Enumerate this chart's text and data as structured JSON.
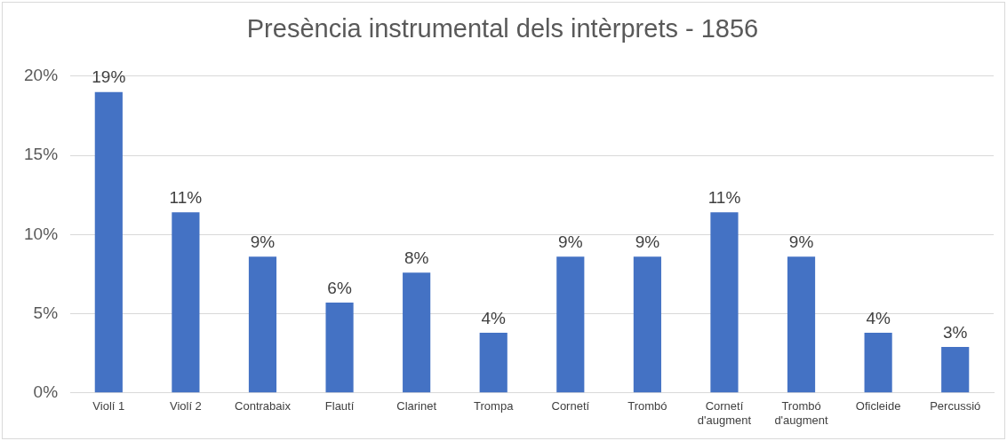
{
  "chart_data": {
    "type": "bar",
    "title": "Presència instrumental dels intèrprets - 1856",
    "categories": [
      "Violí 1",
      "Violí 2",
      "Contrabaix",
      "Flautí",
      "Clarinet",
      "Trompa",
      "Cornetí",
      "Trombó",
      "Cornetí d'augment",
      "Trombó d'augment",
      "Oficleide",
      "Percussió"
    ],
    "values": [
      19.0,
      11.4,
      8.6,
      5.7,
      7.6,
      3.8,
      8.6,
      8.6,
      11.4,
      8.6,
      3.8,
      2.9
    ],
    "value_labels": [
      "19%",
      "11%",
      "9%",
      "6%",
      "8%",
      "4%",
      "9%",
      "9%",
      "11%",
      "9%",
      "4%",
      "3%"
    ],
    "color": "#4472c4",
    "ylim": [
      0,
      20
    ],
    "yticks": [
      {
        "value": 0,
        "label": "0%"
      },
      {
        "value": 5,
        "label": "5%"
      },
      {
        "value": 10,
        "label": "10%"
      },
      {
        "value": 15,
        "label": "15%"
      },
      {
        "value": 20,
        "label": "20%"
      }
    ],
    "grid": "y",
    "legend": false
  }
}
